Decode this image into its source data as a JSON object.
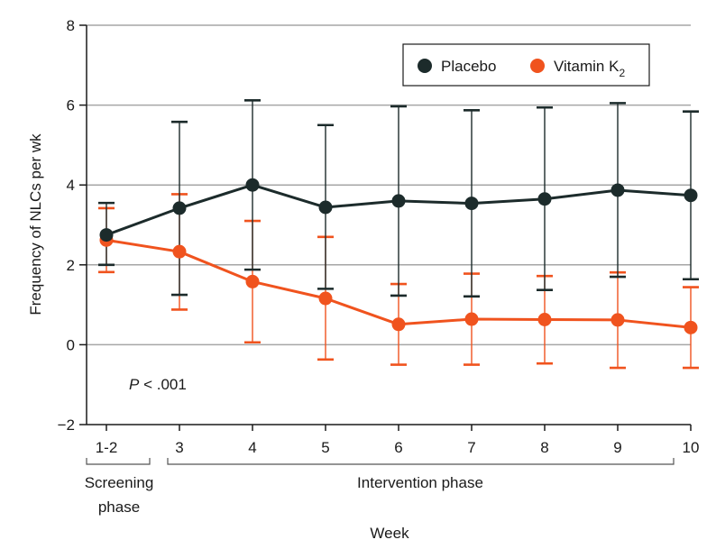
{
  "chart_data": {
    "type": "line",
    "title": "",
    "ylabel": "Frequency of NLCs per wk",
    "xlabel": "Week",
    "ylim": [
      -2,
      8
    ],
    "yticks": [
      -2,
      0,
      2,
      4,
      6,
      8
    ],
    "ytick_labels": [
      "−2",
      "0",
      "2",
      "4",
      "6",
      "8"
    ],
    "grid": true,
    "categories": [
      "1-2",
      "3",
      "4",
      "5",
      "6",
      "7",
      "8",
      "9",
      "10"
    ],
    "phases": [
      {
        "label_line1": "Screening",
        "label_line2": "phase",
        "categories": [
          "1-2"
        ]
      },
      {
        "label_line1": "Intervention phase",
        "label_line2": "",
        "categories": [
          "3",
          "4",
          "5",
          "6",
          "7",
          "8",
          "9",
          "10"
        ]
      }
    ],
    "annotation": {
      "p_italic": "P",
      "p_rest": " < .001"
    },
    "legend": {
      "position": "top-right"
    },
    "series": [
      {
        "name": "Placebo",
        "legend_main": "Placebo",
        "legend_sub": "",
        "color": "#1c2b2b",
        "values": [
          2.75,
          3.42,
          4.0,
          3.44,
          3.6,
          3.54,
          3.65,
          3.87,
          3.74
        ],
        "err_upper": [
          3.55,
          5.58,
          6.12,
          5.5,
          5.97,
          5.87,
          5.94,
          6.05,
          5.84
        ],
        "err_lower": [
          2.0,
          1.25,
          1.88,
          1.4,
          1.23,
          1.21,
          1.37,
          1.7,
          1.64
        ]
      },
      {
        "name": "Vitamin K2",
        "legend_main": "Vitamin K",
        "legend_sub": "2",
        "color": "#f0531e",
        "values": [
          2.62,
          2.33,
          1.58,
          1.16,
          0.51,
          0.64,
          0.63,
          0.62,
          0.43
        ],
        "err_upper": [
          3.42,
          3.77,
          3.1,
          2.7,
          1.52,
          1.78,
          1.72,
          1.81,
          1.44
        ],
        "err_lower": [
          1.82,
          0.88,
          0.06,
          -0.37,
          -0.5,
          -0.5,
          -0.47,
          -0.58,
          -0.58
        ]
      }
    ]
  }
}
